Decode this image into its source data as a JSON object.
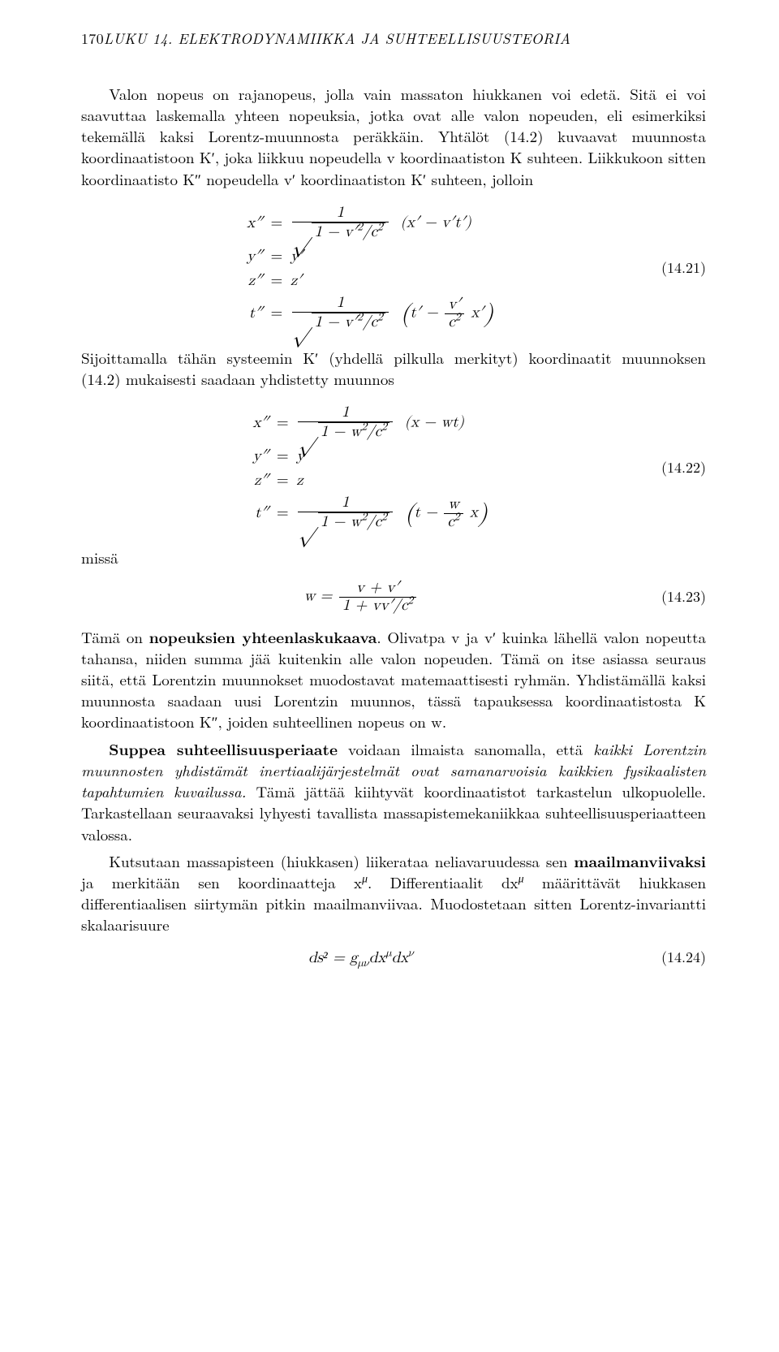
{
  "page": {
    "header_num": "170",
    "header_text": "LUKU 14. ELEKTRODYNAMIIKKA JA SUHTEELLISUUSTEORIA"
  },
  "para": {
    "p1": "Valon nopeus on rajanopeus, jolla vain massaton hiukkanen voi edetä. Sitä ei voi saavuttaa laskemalla yhteen nopeuksia, jotka ovat alle valon nopeuden, eli esimerkiksi tekemällä kaksi Lorentz-muunnosta peräkkäin. Yhtälöt (14.2) kuvaavat muunnosta koordinaatistoon K′, joka liikkuu nopeudella v koordinaatiston K suhteen. Liikkukoon sitten koordinaatisto K″ nopeudella v′ koordinaatiston K′ suhteen, jolloin",
    "p2": "Sijoittamalla tähän systeemin K′ (yhdellä pilkulla merkityt) koordinaatit muunnoksen (14.2) mukaisesti saadaan yhdistetty muunnos",
    "p3": "missä",
    "p4a": "Tämä on ",
    "p4b": "nopeuksien yhteenlaskukaava",
    "p4c": ". Olivatpa v ja v′ kuinka lähellä valon nopeutta tahansa, niiden summa jää kuitenkin alle valon nopeuden. Tämä on itse asiassa seuraus siitä, että Lorentzin muunnokset muodostavat matemaattisesti ryhmän. Yhdistämällä kaksi muunnosta saadaan uusi Lorentzin muunnos, tässä tapauksessa koordinaatistosta K koordinaatistoon K″, joiden suhteellinen nopeus on w.",
    "p5a": "Suppea suhteellisuusperiaate",
    "p5b": " voidaan ilmaista sanomalla, että ",
    "p5c": "kaikki Lorentzin muunnosten yhdistämät inertiaalijärjestelmät ovat samanarvoisia kaikkien fysikaalisten tapahtumien kuvailussa.",
    "p5d": " Tämä jättää kiihtyvät koordinaatistot tarkastelun ulkopuolelle. Tarkastellaan seuraavaksi lyhyesti tavallista massapistemekaniikkaa suhteellisuusperiaatteen valossa.",
    "p6a": "Kutsutaan massapisteen (hiukkasen) liikerataa neliavaruudessa sen ",
    "p6b": "maailmanviivaksi",
    "p6c": " ja merkitään sen koordinaatteja x",
    "p6d": "μ",
    "p6e": ". Differentiaalit dx",
    "p6f": "μ",
    "p6g": " määrittävät hiukkasen differentiaalisen siirtymän pitkin maailmanviivaa. Muodostetaan sitten Lorentz-invariantti skalaarisuure"
  },
  "eq": {
    "l21": "(14.21)",
    "l22": "(14.22)",
    "l23": "(14.23)",
    "l24": "(14.24)",
    "y21": "y″",
    "y21b": "y′",
    "z21": "z″",
    "z21b": "z′",
    "x21": "x″",
    "t21": "t″",
    "y22": "y″",
    "y22b": "y",
    "z22": "z″",
    "z22b": "z",
    "x22": "x″",
    "t22": "t″",
    "w23_lhs": "w =",
    "ds24": "ds² = g"
  }
}
